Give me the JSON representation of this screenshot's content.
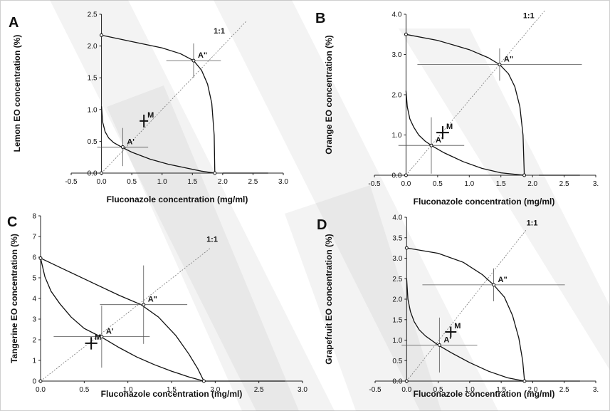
{
  "colors": {
    "axis": "#222222",
    "curve": "#111111",
    "guide": "#555555",
    "diagonal": "#777777",
    "watermark": "#9a9a9a"
  },
  "chart_data": [
    {
      "panel": "A",
      "type": "line",
      "xlabel": "Fluconazole concentration (mg/ml)",
      "ylabel": "Lemon EO concentration (%)",
      "xlim": [
        -0.5,
        3.0
      ],
      "ylim": [
        0,
        2.5
      ],
      "xticks": [
        "-0.5",
        "0.0",
        "0.5",
        "1.0",
        "1.5",
        "2.0",
        "2.5",
        "3.0"
      ],
      "yticks": [
        "0.0",
        "0.5",
        "1.0",
        "1.5",
        "2.0",
        "2.5"
      ],
      "mic_x": 1.87,
      "mic_y": 2.17,
      "series": [
        {
          "x": [
            0.0,
            0.02,
            0.06,
            0.12,
            0.2,
            0.35,
            0.5,
            0.8,
            1.1,
            1.4,
            1.65,
            1.87
          ],
          "y": [
            1.05,
            0.8,
            0.65,
            0.55,
            0.48,
            0.4,
            0.33,
            0.22,
            0.14,
            0.08,
            0.03,
            0.0
          ]
        },
        {
          "x": [
            0.0,
            0.5,
            1.0,
            1.3,
            1.52,
            1.65,
            1.75,
            1.82,
            1.86,
            1.87
          ],
          "y": [
            2.17,
            2.07,
            1.97,
            1.88,
            1.77,
            1.62,
            1.4,
            1.1,
            0.6,
            0.0
          ]
        },
        {
          "x": [
            0.0,
            2.4
          ],
          "y": [
            0.0,
            2.4
          ],
          "dashed": true
        },
        {
          "x": [
            2.0,
            2.75
          ],
          "y": [
            0.0,
            0.0
          ]
        }
      ],
      "annotations": [
        {
          "text": "A'",
          "x": 0.35,
          "y": 0.41,
          "hlen": 0.42,
          "vlen": 0.3
        },
        {
          "text": "A\"",
          "x": 1.52,
          "y": 1.77,
          "hlen": 0.45,
          "vlen": 0.27
        },
        {
          "text": "M",
          "x": 0.7,
          "y": 0.82,
          "hlen": 0.07,
          "vlen": 0.1
        }
      ],
      "diag_label": "1:1",
      "diag_label_at": [
        1.85,
        2.2
      ]
    },
    {
      "panel": "B",
      "type": "line",
      "xlabel": "Fluconazole concentration (mg/ml)",
      "ylabel": "Orange EO concentration (%)",
      "xlim": [
        -0.5,
        3.0
      ],
      "ylim": [
        0,
        4.0
      ],
      "xticks": [
        "-0.5",
        "0.0",
        "0.5",
        "1.0",
        "1.5",
        "2.0",
        "2.5",
        "3."
      ],
      "yticks": [
        "0.0",
        "1.0",
        "2.0",
        "3.0",
        "4.0"
      ],
      "mic_x": 1.87,
      "mic_y": 3.5,
      "series": [
        {
          "x": [
            0.0,
            0.02,
            0.06,
            0.12,
            0.2,
            0.3,
            0.4,
            0.6,
            0.9,
            1.2,
            1.5,
            1.87
          ],
          "y": [
            2.1,
            1.7,
            1.4,
            1.2,
            1.0,
            0.85,
            0.74,
            0.56,
            0.34,
            0.17,
            0.06,
            0.0
          ]
        },
        {
          "x": [
            0.0,
            0.5,
            1.0,
            1.3,
            1.48,
            1.62,
            1.72,
            1.8,
            1.85,
            1.87
          ],
          "y": [
            3.5,
            3.35,
            3.12,
            2.92,
            2.75,
            2.52,
            2.2,
            1.7,
            1.0,
            0.0
          ]
        },
        {
          "x": [
            0.0,
            2.2
          ],
          "y": [
            0.0,
            4.1
          ],
          "dashed": true
        },
        {
          "x": [
            2.1,
            2.75
          ],
          "y": [
            0.0,
            0.0
          ]
        }
      ],
      "annotations": [
        {
          "text": "A'",
          "x": 0.4,
          "y": 0.74,
          "hlen": 0.52,
          "vlen": 0.7
        },
        {
          "text": "A\"",
          "x": 1.48,
          "y": 2.75,
          "hlen": 1.3,
          "vlen": 0.4
        },
        {
          "text": "M",
          "x": 0.58,
          "y": 1.06,
          "hlen": 0.1,
          "vlen": 0.16
        }
      ],
      "diag_label": "1:1",
      "diag_label_at": [
        1.85,
        3.9
      ]
    },
    {
      "panel": "C",
      "type": "line",
      "xlabel": "Fluconazole concentration (mg/ml)",
      "ylabel": "Tangerine EO concentration (%)",
      "xlim": [
        0.0,
        3.0
      ],
      "ylim": [
        0,
        8
      ],
      "xticks": [
        "0.0",
        "0.5",
        "1.0",
        "1.5",
        "2.0",
        "2.5",
        "3.0"
      ],
      "yticks": [
        "0",
        "1",
        "2",
        "3",
        "4",
        "5",
        "6",
        "7",
        "8"
      ],
      "mic_x": 1.87,
      "mic_y": 5.95,
      "series": [
        {
          "x": [
            0.0,
            0.05,
            0.12,
            0.22,
            0.35,
            0.5,
            0.7,
            0.9,
            1.1,
            1.3,
            1.5,
            1.7,
            1.87
          ],
          "y": [
            5.95,
            5.05,
            4.35,
            3.75,
            3.1,
            2.55,
            2.12,
            1.62,
            1.17,
            0.8,
            0.48,
            0.2,
            0.0
          ]
        },
        {
          "x": [
            0.0,
            0.3,
            0.6,
            0.9,
            1.15,
            1.35,
            1.55,
            1.7,
            1.8,
            1.87
          ],
          "y": [
            5.95,
            5.35,
            4.75,
            4.15,
            3.7,
            3.1,
            2.2,
            1.3,
            0.6,
            0.0
          ]
        },
        {
          "x": [
            0.0,
            1.95
          ],
          "y": [
            0.0,
            6.45
          ],
          "dashed": true
        },
        {
          "x": [
            1.87,
            2.8
          ],
          "y": [
            0.0,
            0.0
          ]
        }
      ],
      "annotations": [
        {
          "text": "A'",
          "x": 0.7,
          "y": 2.15,
          "hlen": 0.55,
          "vlen": 1.5
        },
        {
          "text": "A\"",
          "x": 1.18,
          "y": 3.7,
          "hlen": 0.5,
          "vlen": 1.9
        },
        {
          "text": "M",
          "x": 0.58,
          "y": 1.83,
          "hlen": 0.07,
          "vlen": 0.3
        }
      ],
      "diag_label": "1:1",
      "diag_label_at": [
        1.9,
        6.75
      ]
    },
    {
      "panel": "D",
      "type": "line",
      "xlabel": "Fluconazole concentration (mg/ml)",
      "ylabel": "Grapefruit EO concentration (%)",
      "xlim": [
        -0.5,
        3.0
      ],
      "ylim": [
        0,
        4.0
      ],
      "xticks": [
        "-0.5",
        "0.0",
        "0.5",
        "1.0",
        "1.5",
        "2.0",
        "2.5",
        "3."
      ],
      "yticks": [
        "0.0",
        "0.5",
        "1.0",
        "1.5",
        "2.0",
        "2.5",
        "3.0",
        "3.5",
        "4.0"
      ],
      "mic_x": 1.87,
      "mic_y": 3.25,
      "series": [
        {
          "x": [
            0.0,
            0.02,
            0.06,
            0.12,
            0.2,
            0.3,
            0.5,
            0.7,
            1.0,
            1.3,
            1.6,
            1.87
          ],
          "y": [
            2.5,
            2.0,
            1.7,
            1.45,
            1.25,
            1.1,
            0.88,
            0.7,
            0.45,
            0.24,
            0.08,
            0.0
          ]
        },
        {
          "x": [
            0.0,
            0.5,
            0.9,
            1.2,
            1.38,
            1.55,
            1.68,
            1.78,
            1.84,
            1.87
          ],
          "y": [
            3.25,
            3.12,
            2.9,
            2.6,
            2.35,
            2.05,
            1.6,
            1.05,
            0.5,
            0.0
          ]
        },
        {
          "x": [
            0.0,
            1.9
          ],
          "y": [
            0.0,
            3.7
          ],
          "dashed": true
        },
        {
          "x": [
            1.0,
            2.75
          ],
          "y": [
            0.0,
            0.0
          ]
        }
      ],
      "annotations": [
        {
          "text": "A'",
          "x": 0.52,
          "y": 0.88,
          "hlen": 0.6,
          "vlen": 0.67
        },
        {
          "text": "A\"",
          "x": 1.38,
          "y": 2.35,
          "hlen": 1.13,
          "vlen": 0.4
        },
        {
          "text": "M",
          "x": 0.7,
          "y": 1.2,
          "hlen": 0.09,
          "vlen": 0.13
        }
      ],
      "diag_label": "1:1",
      "diag_label_at": [
        1.9,
        3.8
      ]
    }
  ]
}
